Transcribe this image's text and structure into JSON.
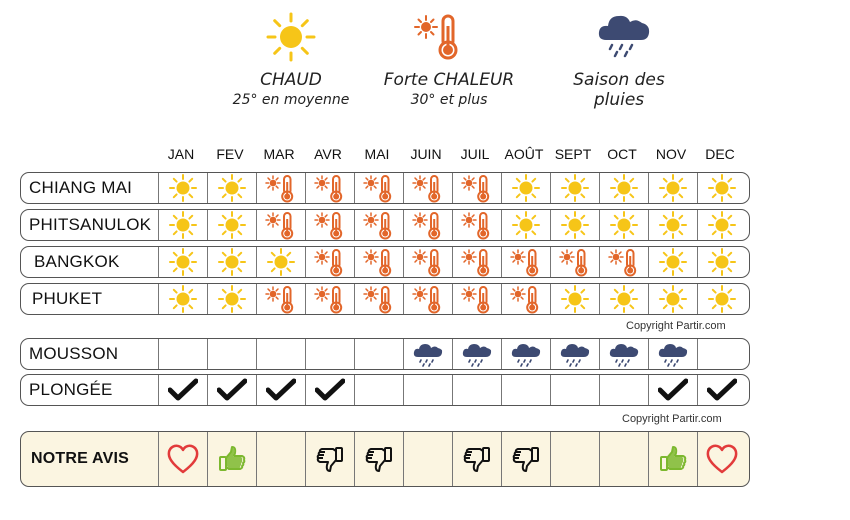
{
  "legend": [
    {
      "icon": "sun-icon",
      "title": "CHAUD",
      "subtitle": "25° en moyenne"
    },
    {
      "icon": "thermometer-sun-icon",
      "title": "Forte CHALEUR",
      "subtitle": "30° et plus"
    },
    {
      "icon": "rain-cloud-icon",
      "title": "Saison des",
      "subtitle": "pluies"
    }
  ],
  "months": [
    "JAN",
    "FEV",
    "MAR",
    "AVR",
    "MAI",
    "JUIN",
    "JUIL",
    "AOÛT",
    "SEPT",
    "OCT",
    "NOV",
    "DEC"
  ],
  "weather_rows": [
    {
      "label": "CHIANG MAI",
      "cells": [
        "sun",
        "sun",
        "hot",
        "hot",
        "hot",
        "hot",
        "hot",
        "sun",
        "sun",
        "sun",
        "sun",
        "sun"
      ]
    },
    {
      "label": "PHITSANULOK",
      "cells": [
        "sun",
        "sun",
        "hot",
        "hot",
        "hot",
        "hot",
        "hot",
        "sun",
        "sun",
        "sun",
        "sun",
        "sun"
      ]
    },
    {
      "label": "BANGKOK",
      "cells": [
        "sun",
        "sun",
        "sun",
        "hot",
        "hot",
        "hot",
        "hot",
        "hot",
        "hot",
        "hot",
        "sun",
        "sun"
      ]
    },
    {
      "label": "PHUKET",
      "cells": [
        "sun",
        "sun",
        "hot",
        "hot",
        "hot",
        "hot",
        "hot",
        "hot",
        "sun",
        "sun",
        "sun",
        "sun"
      ]
    }
  ],
  "copyright_1": "Copyright Partir.com",
  "mousson": {
    "label": "MOUSSON",
    "cells": [
      "",
      "",
      "",
      "",
      "",
      "rain",
      "rain",
      "rain",
      "rain",
      "rain",
      "rain",
      ""
    ]
  },
  "plongee": {
    "label": "PLONGÉE",
    "cells": [
      "check",
      "check",
      "check",
      "check",
      "",
      "",
      "",
      "",
      "",
      "",
      "check",
      "check"
    ]
  },
  "copyright_2": "Copyright Partir.com",
  "avis": {
    "label": "NOTRE AVIS",
    "cells": [
      "heart",
      "thumbs-up",
      "",
      "thumbs-down",
      "thumbs-down",
      "",
      "thumbs-down",
      "thumbs-down",
      "",
      "",
      "thumbs-up",
      "heart"
    ]
  },
  "colors": {
    "sun": "#f6c518",
    "hot": "#e2662a",
    "rain": "#3d4a72",
    "heart": "#e23b3b",
    "thumbs_up": "#7cb82f",
    "avis_bg": "#fbf5e1"
  }
}
